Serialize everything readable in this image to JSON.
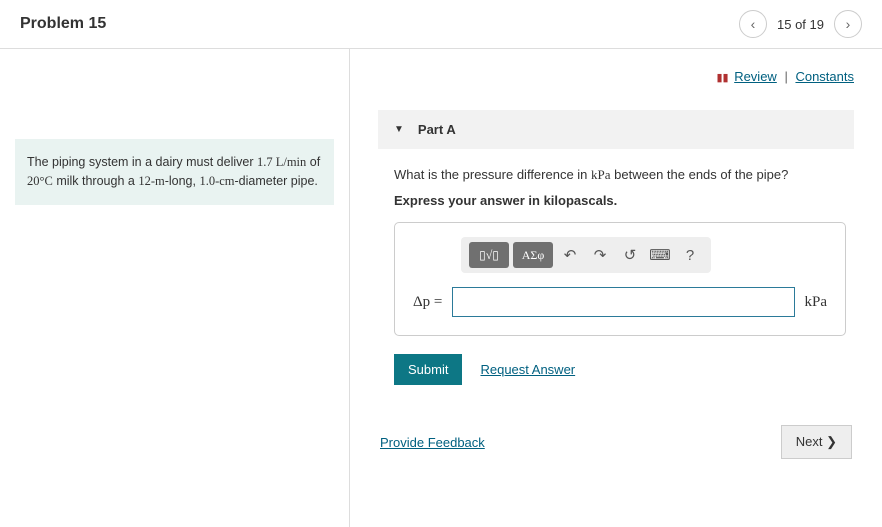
{
  "header": {
    "title": "Problem 15",
    "nav_count": "15 of 19"
  },
  "top_links": {
    "review": "Review",
    "constants": "Constants"
  },
  "problem": {
    "text_1": "The piping system in a dairy must deliver ",
    "val_1": "1.7 L/min",
    "text_2": " of ",
    "val_2": "20°C",
    "text_3": " milk through a ",
    "val_3": "12-m",
    "text_4": "-long, ",
    "val_4": "1.0-cm",
    "text_5": "-diameter pipe."
  },
  "part": {
    "label": "Part A",
    "question_pre": "What is the pressure difference in ",
    "question_unit": "kPa",
    "question_post": " between the ends of the pipe?",
    "instruction": "Express your answer in kilopascals.",
    "lhs": "Δp =",
    "unit": "kPa",
    "input_value": ""
  },
  "toolbar": {
    "templates_a": "▯√▯",
    "templates_b": "ΑΣφ",
    "undo": "↶",
    "redo": "↷",
    "reset": "↺",
    "keyboard": "⌨",
    "help": "?"
  },
  "actions": {
    "submit": "Submit",
    "request": "Request Answer",
    "feedback": "Provide Feedback",
    "next": "Next ❯"
  }
}
